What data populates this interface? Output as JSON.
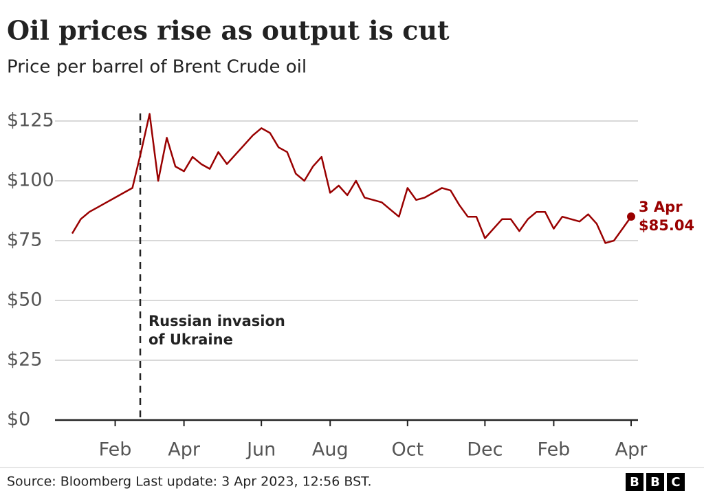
{
  "chart_data": {
    "type": "line",
    "title": "Oil prices rise as output is cut",
    "subtitle": "Price per barrel of Brent Crude oil",
    "categories": [
      null,
      null,
      null,
      null,
      null,
      "Feb",
      null,
      null,
      null,
      null,
      null,
      null,
      null,
      "Apr",
      null,
      null,
      null,
      null,
      null,
      null,
      null,
      null,
      "Jun",
      null,
      null,
      null,
      null,
      null,
      null,
      null,
      "Aug",
      null,
      null,
      null,
      null,
      null,
      null,
      null,
      null,
      "Oct",
      null,
      null,
      null,
      null,
      null,
      null,
      null,
      null,
      "Dec",
      null,
      null,
      null,
      null,
      null,
      null,
      null,
      "Feb",
      null,
      null,
      null,
      null,
      null,
      null,
      null,
      null,
      "Apr"
    ],
    "values": [
      78,
      84,
      87,
      89,
      91,
      93,
      95,
      97,
      112,
      128,
      100,
      118,
      106,
      104,
      110,
      107,
      105,
      112,
      107,
      111,
      115,
      119,
      122,
      120,
      114,
      112,
      103,
      100,
      106,
      110,
      95,
      98,
      94,
      100,
      93,
      92,
      91,
      88,
      85,
      97,
      92,
      93,
      95,
      97,
      96,
      90,
      85,
      85,
      76,
      80,
      84,
      84,
      79,
      84,
      87,
      87,
      80,
      85,
      84,
      83,
      86,
      82,
      74,
      75,
      80,
      85.04
    ],
    "color": "#990000",
    "ylim": [
      0,
      125
    ],
    "yticks": [
      {
        "value": 0,
        "label": "$0"
      },
      {
        "value": 25,
        "label": "$25"
      },
      {
        "value": 50,
        "label": "$50"
      },
      {
        "value": 75,
        "label": "$75"
      },
      {
        "value": 100,
        "label": "$100"
      },
      {
        "value": 125,
        "label": "$125"
      }
    ],
    "grid": true,
    "annotation": [
      "Russian invasion",
      "of Ukraine"
    ],
    "end_label": {
      "date": "3 Apr",
      "value_label": "$85.04"
    },
    "source": "Source: Bloomberg Last update: 3 Apr 2023, 12:56 BST.",
    "logo": [
      "B",
      "B",
      "C"
    ]
  }
}
